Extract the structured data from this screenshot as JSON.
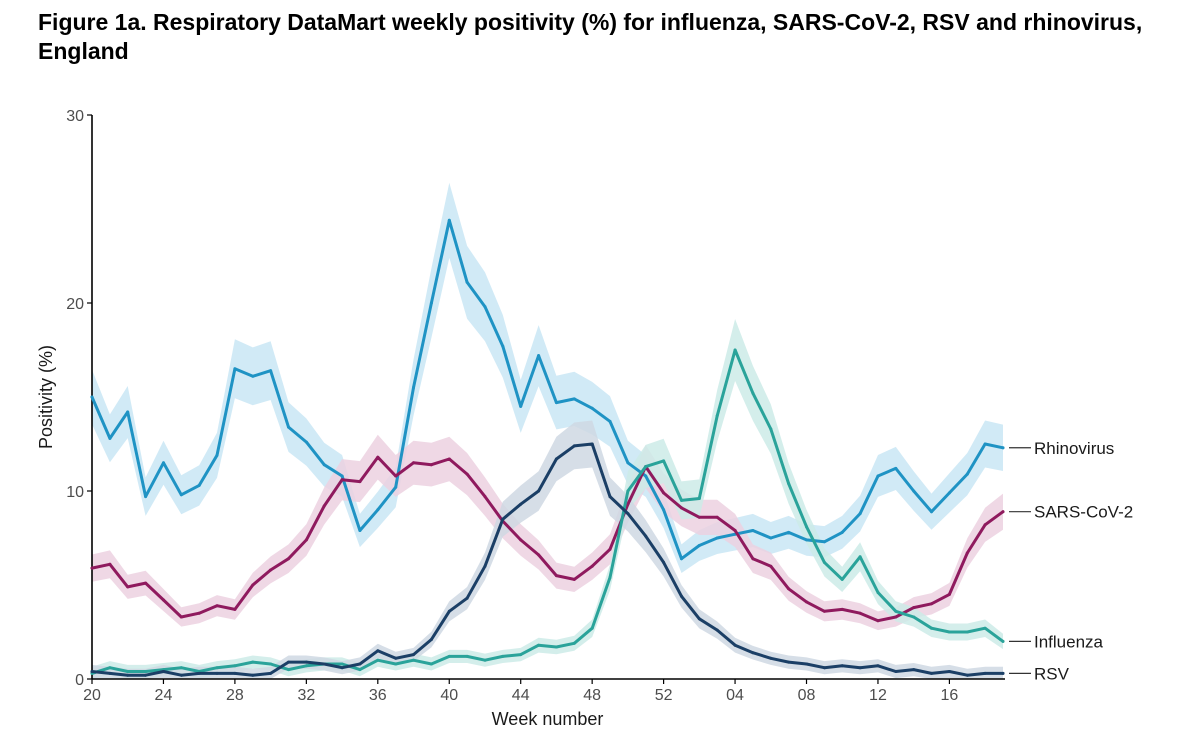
{
  "figure": {
    "title": "Figure 1a. Respiratory DataMart weekly positivity (%) for influenza, SARS-CoV-2, RSV and rhinovirus, England"
  },
  "chart_data": {
    "type": "line",
    "title": "Figure 1a. Respiratory DataMart weekly positivity (%) for influenza, SARS-CoV-2, RSV and rhinovirus, England",
    "xlabel": "Week number",
    "ylabel": "Positivity (%)",
    "ylim": [
      0,
      30
    ],
    "yticks": [
      0,
      10,
      20,
      30
    ],
    "x_tick_labels": [
      "20",
      "24",
      "28",
      "32",
      "36",
      "40",
      "44",
      "48",
      "52",
      "04",
      "08",
      "12",
      "16"
    ],
    "x": [
      "20",
      "21",
      "22",
      "23",
      "24",
      "25",
      "26",
      "27",
      "28",
      "29",
      "30",
      "31",
      "32",
      "33",
      "34",
      "35",
      "36",
      "37",
      "38",
      "39",
      "40",
      "41",
      "42",
      "43",
      "44",
      "45",
      "46",
      "47",
      "48",
      "49",
      "50",
      "51",
      "52",
      "01",
      "02",
      "03",
      "04",
      "05",
      "06",
      "07",
      "08",
      "09",
      "10",
      "11",
      "12",
      "13",
      "14",
      "15",
      "16",
      "17",
      "18",
      "19"
    ],
    "grid": false,
    "legend": "direct labels at right end of lines",
    "confidence_bands": true,
    "series": [
      {
        "name": "Rhinovirus",
        "color": "#1f93c4",
        "band_color": "#c9e6f5",
        "values": [
          15.0,
          12.8,
          14.2,
          9.7,
          11.5,
          9.8,
          10.3,
          11.9,
          16.5,
          16.1,
          16.4,
          13.4,
          12.6,
          11.4,
          10.8,
          7.9,
          9.0,
          10.2,
          15.5,
          20.0,
          24.4,
          21.1,
          19.8,
          17.7,
          14.5,
          17.2,
          14.7,
          14.9,
          14.4,
          13.7,
          11.5,
          10.8,
          9.0,
          6.4,
          7.1,
          7.5,
          7.7,
          7.9,
          7.5,
          7.8,
          7.4,
          7.3,
          7.8,
          8.8,
          10.8,
          11.2,
          10.0,
          8.9,
          9.9,
          10.9,
          12.5,
          12.3
        ]
      },
      {
        "name": "SARS-CoV-2",
        "color": "#8f1a5e",
        "band_color": "#ecd1e0",
        "values": [
          5.9,
          6.1,
          4.9,
          5.1,
          4.2,
          3.3,
          3.5,
          3.9,
          3.7,
          5.0,
          5.8,
          6.4,
          7.4,
          9.2,
          10.6,
          10.5,
          11.8,
          10.8,
          11.5,
          11.4,
          11.7,
          10.9,
          9.7,
          8.4,
          7.4,
          6.6,
          5.5,
          5.3,
          6.0,
          6.9,
          9.3,
          11.3,
          9.9,
          9.1,
          8.6,
          8.6,
          7.9,
          6.4,
          6.0,
          4.8,
          4.1,
          3.6,
          3.7,
          3.5,
          3.1,
          3.3,
          3.8,
          4.0,
          4.5,
          6.7,
          8.2,
          8.9
        ]
      },
      {
        "name": "Influenza",
        "color": "#2aa39a",
        "band_color": "#cdebe7",
        "values": [
          0.3,
          0.6,
          0.4,
          0.4,
          0.5,
          0.6,
          0.4,
          0.6,
          0.7,
          0.9,
          0.8,
          0.5,
          0.7,
          0.8,
          0.8,
          0.5,
          1.0,
          0.8,
          1.0,
          0.8,
          1.2,
          1.2,
          1.0,
          1.2,
          1.3,
          1.8,
          1.7,
          1.9,
          2.7,
          5.4,
          10.0,
          11.3,
          11.6,
          9.5,
          9.6,
          14.0,
          17.5,
          15.2,
          13.3,
          10.4,
          8.1,
          6.2,
          5.3,
          6.5,
          4.6,
          3.6,
          3.3,
          2.7,
          2.5,
          2.5,
          2.7,
          2.0
        ]
      },
      {
        "name": "RSV",
        "color": "#1b3f66",
        "band_color": "#cfd8e3",
        "values": [
          0.4,
          0.3,
          0.2,
          0.2,
          0.4,
          0.2,
          0.3,
          0.3,
          0.3,
          0.2,
          0.3,
          0.9,
          0.9,
          0.8,
          0.6,
          0.8,
          1.5,
          1.1,
          1.3,
          2.1,
          3.6,
          4.3,
          6.0,
          8.5,
          9.3,
          10.0,
          11.7,
          12.4,
          12.5,
          9.7,
          8.8,
          7.6,
          6.2,
          4.4,
          3.2,
          2.6,
          1.8,
          1.4,
          1.1,
          0.9,
          0.8,
          0.6,
          0.7,
          0.6,
          0.7,
          0.4,
          0.5,
          0.3,
          0.4,
          0.2,
          0.3,
          0.3
        ]
      }
    ]
  }
}
